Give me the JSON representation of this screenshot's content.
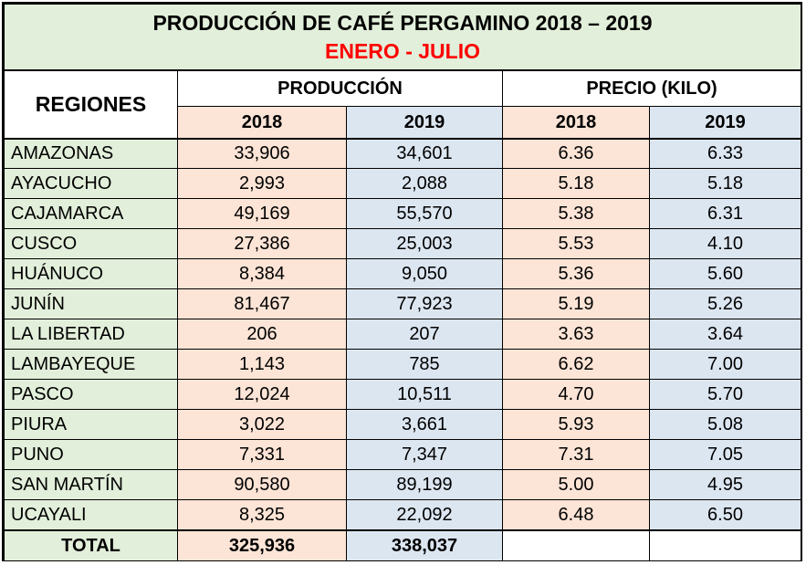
{
  "title": "PRODUCCIÓN DE CAFÉ PERGAMINO 2018 – 2019",
  "subtitle": "ENERO - JULIO",
  "headers": {
    "regiones": "REGIONES",
    "produccion": "PRODUCCIÓN",
    "precio": "PRECIO (KILO)",
    "years": [
      "2018",
      "2019",
      "2018",
      "2019"
    ]
  },
  "rows": [
    {
      "region": "AMAZONAS",
      "prod_2018": "33,906",
      "prod_2019": "34,601",
      "precio_2018": "6.36",
      "precio_2019": "6.33"
    },
    {
      "region": "AYACUCHO",
      "prod_2018": "2,993",
      "prod_2019": "2,088",
      "precio_2018": "5.18",
      "precio_2019": "5.18"
    },
    {
      "region": "CAJAMARCA",
      "prod_2018": "49,169",
      "prod_2019": "55,570",
      "precio_2018": "5.38",
      "precio_2019": "6.31"
    },
    {
      "region": "CUSCO",
      "prod_2018": "27,386",
      "prod_2019": "25,003",
      "precio_2018": "5.53",
      "precio_2019": "4.10"
    },
    {
      "region": "HUÁNUCO",
      "prod_2018": "8,384",
      "prod_2019": "9,050",
      "precio_2018": "5.36",
      "precio_2019": "5.60"
    },
    {
      "region": "JUNÍN",
      "prod_2018": "81,467",
      "prod_2019": "77,923",
      "precio_2018": "5.19",
      "precio_2019": "5.26"
    },
    {
      "region": "LA LIBERTAD",
      "prod_2018": "206",
      "prod_2019": "207",
      "precio_2018": "3.63",
      "precio_2019": "3.64"
    },
    {
      "region": "LAMBAYEQUE",
      "prod_2018": "1,143",
      "prod_2019": "785",
      "precio_2018": "6.62",
      "precio_2019": "7.00"
    },
    {
      "region": "PASCO",
      "prod_2018": "12,024",
      "prod_2019": "10,511",
      "precio_2018": "4.70",
      "precio_2019": "5.70"
    },
    {
      "region": "PIURA",
      "prod_2018": "3,022",
      "prod_2019": "3,661",
      "precio_2018": "5.93",
      "precio_2019": "5.08"
    },
    {
      "region": "PUNO",
      "prod_2018": "7,331",
      "prod_2019": "7,347",
      "precio_2018": "7.31",
      "precio_2019": "7.05"
    },
    {
      "region": "SAN MARTÍN",
      "prod_2018": "90,580",
      "prod_2019": "89,199",
      "precio_2018": "5.00",
      "precio_2019": "4.95"
    },
    {
      "region": "UCAYALI",
      "prod_2018": "8,325",
      "prod_2019": "22,092",
      "precio_2018": "6.48",
      "precio_2019": "6.50"
    }
  ],
  "total": {
    "label": "TOTAL",
    "prod_2018": "325,936",
    "prod_2019": "338,037",
    "precio_2018": "",
    "precio_2019": ""
  },
  "colors": {
    "green": "#e2efda",
    "pink": "#fce4d6",
    "blue": "#dce6f1",
    "subtitle_red": "#ff0000"
  }
}
